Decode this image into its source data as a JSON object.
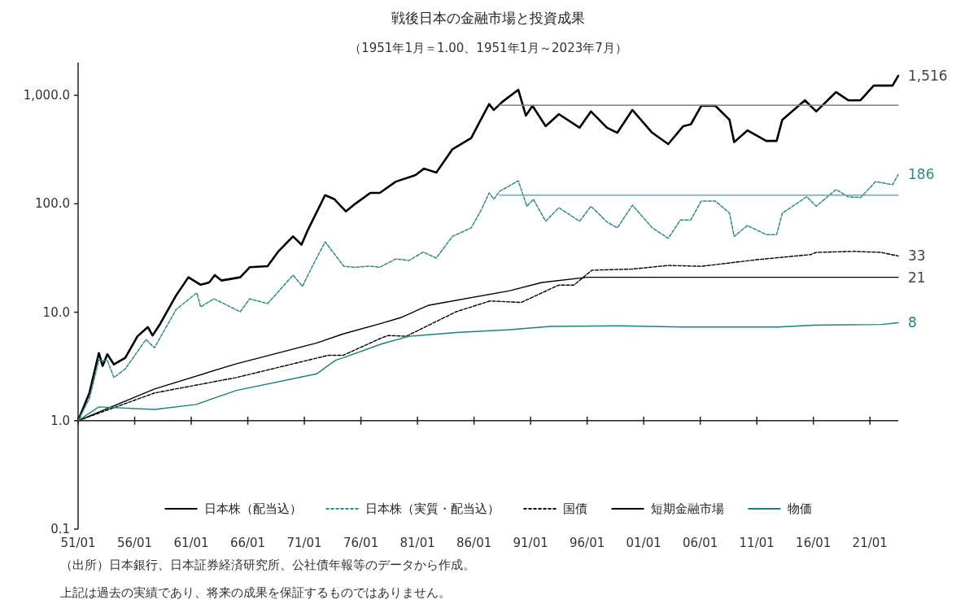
{
  "chart_data": {
    "type": "line",
    "title": "戦後日本の金融市場と投資成果",
    "subtitle": "（1951年1月＝1.00、1951年1月～2023年7月）",
    "log": "y",
    "grid": false,
    "legend": "bottom",
    "marker": "none",
    "xlim": [
      "1951-01",
      "2023-07"
    ],
    "ylim": [
      0.1,
      2000
    ],
    "xticks": [
      {
        "value": "1951-01",
        "label": "51/01"
      },
      {
        "value": "1956-01",
        "label": "56/01"
      },
      {
        "value": "1961-01",
        "label": "61/01"
      },
      {
        "value": "1966-01",
        "label": "66/01"
      },
      {
        "value": "1971-01",
        "label": "71/01"
      },
      {
        "value": "1976-01",
        "label": "76/01"
      },
      {
        "value": "1981-01",
        "label": "81/01"
      },
      {
        "value": "1986-01",
        "label": "86/01"
      },
      {
        "value": "1991-01",
        "label": "91/01"
      },
      {
        "value": "1996-01",
        "label": "96/01"
      },
      {
        "value": "2001-01",
        "label": "01/01"
      },
      {
        "value": "2006-01",
        "label": "06/01"
      },
      {
        "value": "2011-01",
        "label": "11/01"
      },
      {
        "value": "2016-01",
        "label": "16/01"
      },
      {
        "value": "2021-01",
        "label": "21/01"
      }
    ],
    "yticks": [
      {
        "value": 0.1,
        "label": "0.1"
      },
      {
        "value": 1,
        "label": "1.0"
      },
      {
        "value": 10,
        "label": "10.0"
      },
      {
        "value": 100,
        "label": "100.0"
      },
      {
        "value": 1000,
        "label": "1,000.0"
      }
    ],
    "series": [
      {
        "name": "日本株（配当込）",
        "color": "#000000",
        "line_style": "solid",
        "x": [
          "1951-01",
          "1952-01",
          "1952-11",
          "1953-03",
          "1953-08",
          "1954-03",
          "1955-03",
          "1956-04",
          "1957-03",
          "1957-08",
          "1958-04",
          "1959-09",
          "1960-10",
          "1961-11",
          "1962-08",
          "1963-02",
          "1963-09",
          "1965-05",
          "1966-03",
          "1967-10",
          "1968-09",
          "1970-01",
          "1970-10",
          "1971-05",
          "1972-11",
          "1973-09",
          "1974-09",
          "1975-07",
          "1976-11",
          "1977-09",
          "1979-02",
          "1980-11",
          "1981-08",
          "1982-09",
          "1984-02",
          "1985-10",
          "1986-07",
          "1987-05",
          "1987-10",
          "1988-07",
          "1989-12",
          "1990-08",
          "1991-03",
          "1992-05",
          "1993-07",
          "1995-05",
          "1996-05",
          "1997-10",
          "1998-09",
          "2000-01",
          "2001-10",
          "2003-03",
          "2004-07",
          "2005-03",
          "2006-02",
          "2007-05",
          "2008-08",
          "2009-01",
          "2010-03",
          "2011-11",
          "2012-10",
          "2013-04",
          "2015-04",
          "2016-04",
          "2018-01",
          "2019-02",
          "2020-03",
          "2021-05",
          "2023-01",
          "2023-07"
        ],
        "values": [
          1.0,
          1.8,
          4.2,
          3.2,
          4.1,
          3.3,
          3.8,
          6.0,
          7.3,
          6.1,
          7.8,
          14.3,
          21,
          17.9,
          18.8,
          22,
          19.6,
          21,
          26,
          26.6,
          36,
          50,
          42,
          58,
          120,
          110,
          85,
          100,
          126,
          126,
          160,
          184,
          211,
          194,
          318,
          403,
          570,
          830,
          733,
          870,
          1125,
          650,
          800,
          520,
          670,
          503,
          710,
          503,
          452,
          733,
          452,
          355,
          520,
          540,
          800,
          800,
          595,
          370,
          475,
          380,
          380,
          595,
          900,
          710,
          1070,
          900,
          900,
          1230,
          1230,
          1516
        ],
        "value_labels": [
          null,
          null,
          null,
          null,
          null,
          null,
          null,
          null,
          null,
          null,
          null,
          null,
          null,
          null,
          null,
          null,
          null,
          null,
          null,
          null,
          null,
          null,
          null,
          null,
          null,
          null,
          null,
          null,
          null,
          null,
          null,
          null,
          null,
          null,
          null,
          null,
          null,
          null,
          null,
          null,
          null,
          null,
          null,
          null,
          null,
          null,
          null,
          null,
          null,
          null,
          null,
          null,
          null,
          null,
          null,
          null,
          null,
          null,
          null,
          null,
          null,
          null,
          null,
          null,
          null,
          null,
          null,
          null,
          null,
          "1,516"
        ]
      },
      {
        "name": "日本株（実質・配当込）",
        "color": "#2e8b86",
        "line_style": "dashed",
        "x": [
          "1951-01",
          "1952-01",
          "1952-11",
          "1953-08",
          "1954-03",
          "1955-03",
          "1957-01",
          "1957-10",
          "1959-09",
          "1961-07",
          "1961-11",
          "1963-01",
          "1965-05",
          "1966-03",
          "1967-10",
          "1970-01",
          "1970-11",
          "1971-08",
          "1972-11",
          "1974-07",
          "1975-07",
          "1976-11",
          "1977-09",
          "1979-02",
          "1980-04",
          "1981-07",
          "1982-09",
          "1984-02",
          "1985-10",
          "1986-09",
          "1987-05",
          "1987-10",
          "1988-04",
          "1989-12",
          "1990-09",
          "1991-04",
          "1992-05",
          "1993-07",
          "1995-05",
          "1996-05",
          "1997-10",
          "1998-09",
          "2000-01",
          "2001-10",
          "2003-03",
          "2004-04",
          "2005-03",
          "2006-02",
          "2007-05",
          "2008-08",
          "2009-01",
          "2010-03",
          "2011-11",
          "2012-10",
          "2013-04",
          "2015-06",
          "2016-04",
          "2018-01",
          "2019-02",
          "2020-03",
          "2021-07",
          "2023-01",
          "2023-07"
        ],
        "values": [
          1.0,
          1.6,
          3.6,
          3.6,
          2.5,
          3.0,
          5.6,
          4.7,
          10.6,
          15.1,
          11.2,
          13.3,
          10.1,
          13.3,
          12.0,
          22,
          17.3,
          25,
          44.6,
          26.5,
          26,
          26.6,
          26,
          31,
          30,
          35.8,
          31.6,
          50,
          60,
          89,
          126,
          110,
          130,
          163,
          95,
          110,
          69,
          92,
          69,
          95,
          68,
          60,
          97,
          60,
          48,
          71,
          71,
          106,
          106,
          82,
          50,
          63,
          52,
          52,
          82,
          116,
          95,
          135,
          116,
          114,
          160,
          150,
          186
        ],
        "value_labels": [
          null,
          null,
          null,
          null,
          null,
          null,
          null,
          null,
          null,
          null,
          null,
          null,
          null,
          null,
          null,
          null,
          null,
          null,
          null,
          null,
          null,
          null,
          null,
          null,
          null,
          null,
          null,
          null,
          null,
          null,
          null,
          null,
          null,
          null,
          null,
          null,
          null,
          null,
          null,
          null,
          null,
          null,
          null,
          null,
          null,
          null,
          null,
          null,
          null,
          null,
          null,
          null,
          null,
          null,
          null,
          null,
          null,
          null,
          null,
          null,
          null,
          null,
          "186"
        ]
      },
      {
        "name": "国債",
        "color": "#000000",
        "line_style": "dashed",
        "x": [
          "1951-01",
          "1957-10",
          "1965-01",
          "1973-02",
          "1974-06",
          "1977-11",
          "1978-06",
          "1980-01",
          "1984-06",
          "1987-06",
          "1990-03",
          "1993-07",
          "1994-11",
          "1996-06",
          "2000-01",
          "2003-03",
          "2006-02",
          "2011-01",
          "2015-10",
          "2016-04",
          "2019-08",
          "2022-01",
          "2023-07"
        ],
        "values": [
          1.0,
          1.8,
          2.5,
          4.0,
          4.0,
          5.8,
          6.1,
          6.0,
          10.1,
          12.7,
          12.3,
          17.8,
          17.8,
          24.4,
          25,
          27,
          26.5,
          30.5,
          34,
          35.6,
          36.4,
          35.6,
          33
        ],
        "value_labels": [
          null,
          null,
          null,
          null,
          null,
          null,
          null,
          null,
          null,
          null,
          null,
          null,
          null,
          null,
          null,
          null,
          null,
          null,
          null,
          null,
          null,
          null,
          "33"
        ]
      },
      {
        "name": "短期金融市場",
        "color": "#000000",
        "line_style": "solid",
        "x": [
          "1951-01",
          "1957-10",
          "1965-01",
          "1972-02",
          "1974-06",
          "1977-11",
          "1979-07",
          "1982-01",
          "1989-03",
          "1992-01",
          "1996-01",
          "2023-07"
        ],
        "values": [
          1.0,
          1.96,
          3.35,
          5.2,
          6.3,
          7.9,
          8.9,
          11.6,
          15.8,
          18.8,
          21,
          21
        ],
        "value_labels": [
          null,
          null,
          null,
          null,
          null,
          null,
          null,
          null,
          null,
          null,
          null,
          "21"
        ]
      },
      {
        "name": "物価",
        "color": "#1f7f7a",
        "line_style": "solid",
        "x": [
          "1951-01",
          "1952-11",
          "1957-10",
          "1961-06",
          "1965-01",
          "1972-02",
          "1973-10",
          "1974-06",
          "1977-11",
          "1980-04",
          "1984-06",
          "1989-03",
          "1992-10",
          "1998-09",
          "2004-07",
          "2012-11",
          "2016-01",
          "2022-01",
          "2023-07"
        ],
        "values": [
          1.0,
          1.34,
          1.27,
          1.41,
          1.9,
          2.7,
          3.6,
          3.8,
          5.1,
          6.0,
          6.5,
          6.9,
          7.4,
          7.5,
          7.3,
          7.3,
          7.6,
          7.7,
          8
        ],
        "value_labels": [
          null,
          null,
          null,
          null,
          null,
          null,
          null,
          null,
          null,
          null,
          null,
          null,
          null,
          null,
          null,
          null,
          null,
          null,
          "8"
        ]
      },
      {
        "color": "#808080",
        "line_style": "solid",
        "x": [
          "1988-04",
          "2023-07"
        ],
        "values": [
          810,
          810
        ]
      },
      {
        "color": "#5fb3ae",
        "line_style": "solid",
        "x": [
          "1988-04",
          "2023-07"
        ],
        "values": [
          120,
          120
        ]
      }
    ],
    "ref_lines": [
      {
        "axis": "y",
        "value": 1,
        "color": "#222222"
      }
    ],
    "annotations": [
      "（出所）日本銀行、日本証券経済研究所、公社債年報等のデータから作成。",
      "上記は過去の実績であり、将来の成果を保証するものではありません。"
    ]
  }
}
